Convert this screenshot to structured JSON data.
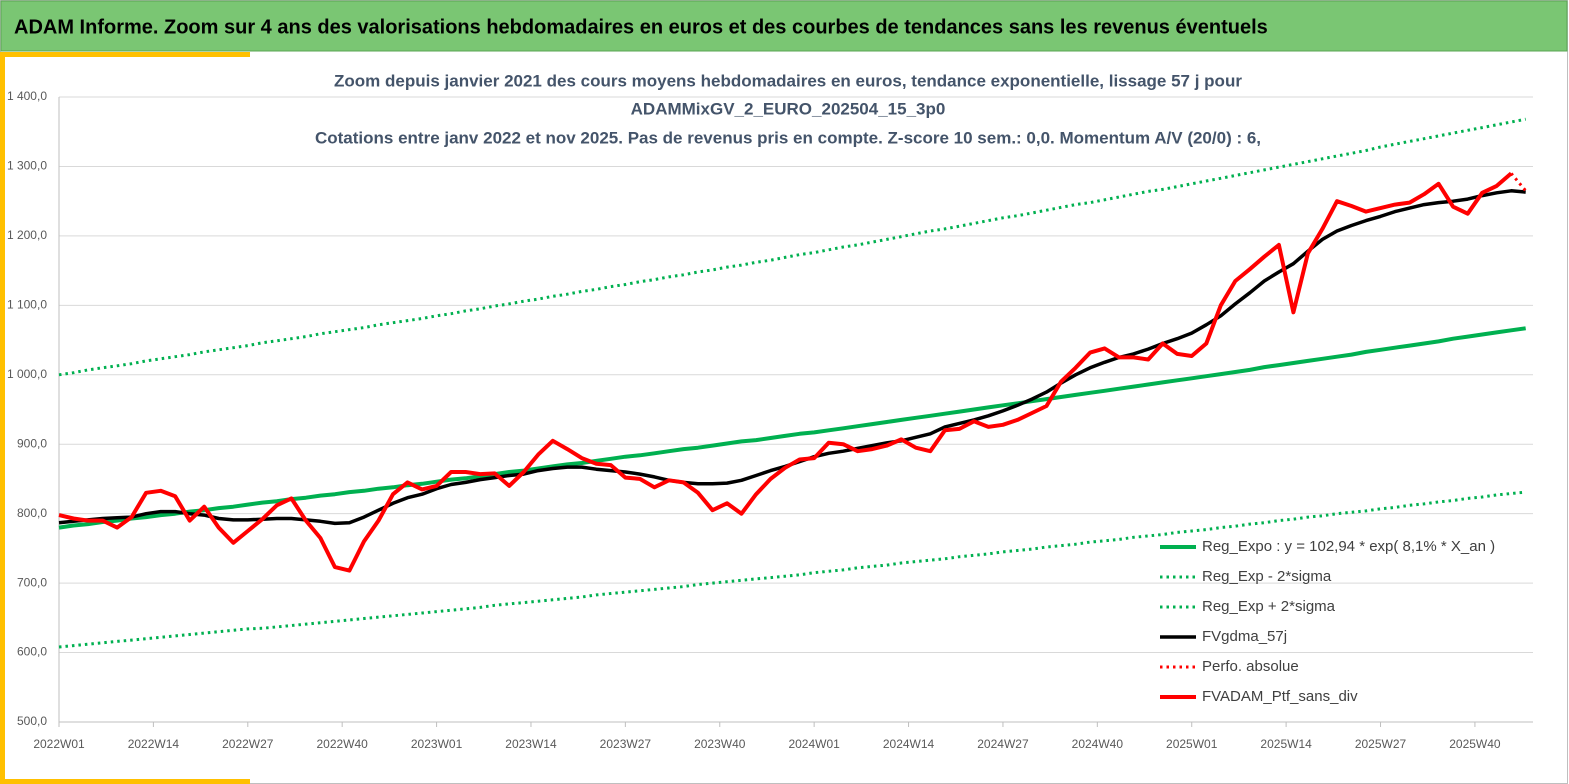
{
  "header": "ADAM Informe. Zoom sur 4 ans des valorisations hebdomadaires en euros et des courbes de tendances sans les revenus éventuels",
  "chart_data": {
    "type": "line",
    "title": [
      "Zoom depuis janvier 2021 des cours moyens hebdomadaires  en euros, tendance exponentielle, lissage 57 j pour",
      "ADAMMixGV_2_EURO_202504_15_3p0",
      "Cotations entre janv 2022 et nov 2025. Pas de revenus pris en compte. Z-score 10 sem.: 0,0. Momentum A/V (20/0) : 6,"
    ],
    "x": [
      0,
      2,
      4,
      6,
      8,
      10,
      12,
      14,
      16,
      18,
      20,
      22,
      24,
      26,
      28,
      30,
      32,
      34,
      36,
      38,
      40,
      42,
      44,
      46,
      48,
      50,
      52,
      54,
      56,
      58,
      60,
      62,
      64,
      66,
      68,
      70,
      72,
      74,
      76,
      78,
      80,
      82,
      84,
      86,
      88,
      90,
      92,
      94,
      96,
      98,
      100,
      102,
      104,
      106,
      108,
      110,
      112,
      114,
      116,
      118,
      120,
      122,
      124,
      126,
      128,
      130,
      132,
      134,
      136,
      138,
      140,
      142,
      144,
      146,
      148,
      150,
      152,
      154,
      156,
      158,
      160,
      162,
      164,
      166,
      168,
      170,
      172,
      174,
      176,
      178,
      180,
      182,
      184,
      186,
      188,
      190,
      192,
      194,
      196,
      198,
      200,
      202
    ],
    "xlim": [
      0,
      203
    ],
    "xticks": [
      {
        "value": 0,
        "label": "2022W01"
      },
      {
        "value": 13,
        "label": "2022W14"
      },
      {
        "value": 26,
        "label": "2022W27"
      },
      {
        "value": 39,
        "label": "2022W40"
      },
      {
        "value": 52,
        "label": "2023W01"
      },
      {
        "value": 65,
        "label": "2023W14"
      },
      {
        "value": 78,
        "label": "2023W27"
      },
      {
        "value": 91,
        "label": "2023W40"
      },
      {
        "value": 104,
        "label": "2024W01"
      },
      {
        "value": 117,
        "label": "2024W14"
      },
      {
        "value": 130,
        "label": "2024W27"
      },
      {
        "value": 143,
        "label": "2024W40"
      },
      {
        "value": 156,
        "label": "2025W01"
      },
      {
        "value": 169,
        "label": "2025W14"
      },
      {
        "value": 182,
        "label": "2025W27"
      },
      {
        "value": 195,
        "label": "2025W40"
      }
    ],
    "ylim": [
      500,
      1400
    ],
    "yticks": [
      {
        "value": 500,
        "label": "500,0"
      },
      {
        "value": 600,
        "label": "600,0"
      },
      {
        "value": 700,
        "label": "700,0"
      },
      {
        "value": 800,
        "label": "800,0"
      },
      {
        "value": 900,
        "label": "900,0"
      },
      {
        "value": 1000,
        "label": "1 000,0"
      },
      {
        "value": 1100,
        "label": "1 100,0"
      },
      {
        "value": 1200,
        "label": "1 200,0"
      },
      {
        "value": 1300,
        "label": "1 300,0"
      },
      {
        "value": 1400,
        "label": "1 400,0"
      }
    ],
    "grid": true,
    "legend": "right",
    "series": [
      {
        "name": "Reg_Expo : y = 102,94 * exp( 8,1% *  X_an )",
        "color": "#00b050",
        "style": "solid",
        "values": [
          780,
          783,
          785,
          788,
          790,
          793,
          795,
          798,
          800,
          803,
          805,
          808,
          810,
          813,
          816,
          818,
          821,
          823,
          826,
          828,
          831,
          833,
          836,
          838,
          841,
          843,
          846,
          849,
          851,
          854,
          857,
          860,
          862,
          865,
          868,
          871,
          873,
          876,
          879,
          882,
          884,
          887,
          890,
          893,
          895,
          898,
          901,
          904,
          906,
          909,
          912,
          915,
          917,
          920,
          923,
          926,
          929,
          932,
          935,
          938,
          941,
          944,
          947,
          950,
          953,
          956,
          959,
          962,
          965,
          968,
          971,
          974,
          977,
          980,
          983,
          986,
          989,
          992,
          995,
          998,
          1001,
          1004,
          1007,
          1011,
          1014,
          1017,
          1020,
          1023,
          1026,
          1029,
          1033,
          1036,
          1039,
          1042,
          1045,
          1048,
          1052,
          1055,
          1058,
          1061,
          1064,
          1067
        ]
      },
      {
        "name": "Reg_Exp - 2*sigma",
        "color": "#00b050",
        "style": "dotted",
        "values": [
          608,
          610,
          612,
          614,
          616,
          618,
          620,
          622,
          624,
          626,
          628,
          630,
          632,
          634,
          635,
          637,
          639,
          641,
          643,
          645,
          647,
          649,
          651,
          653,
          655,
          657,
          659,
          661,
          663,
          665,
          668,
          670,
          672,
          674,
          676,
          678,
          680,
          683,
          685,
          687,
          689,
          691,
          693,
          695,
          698,
          700,
          702,
          704,
          706,
          708,
          710,
          712,
          715,
          717,
          719,
          722,
          724,
          726,
          729,
          731,
          733,
          735,
          738,
          740,
          742,
          745,
          747,
          749,
          752,
          754,
          756,
          759,
          761,
          763,
          766,
          768,
          770,
          773,
          775,
          777,
          780,
          782,
          785,
          787,
          790,
          792,
          795,
          797,
          800,
          802,
          804,
          807,
          809,
          812,
          814,
          817,
          819,
          822,
          824,
          827,
          829,
          831
        ]
      },
      {
        "name": "Reg_Exp + 2*sigma",
        "color": "#00b050",
        "style": "dotted",
        "values": [
          1000,
          1003,
          1007,
          1010,
          1013,
          1016,
          1020,
          1023,
          1026,
          1029,
          1033,
          1036,
          1039,
          1042,
          1046,
          1049,
          1052,
          1055,
          1059,
          1062,
          1065,
          1068,
          1072,
          1075,
          1078,
          1081,
          1085,
          1088,
          1092,
          1095,
          1099,
          1102,
          1106,
          1109,
          1113,
          1116,
          1120,
          1123,
          1127,
          1130,
          1134,
          1137,
          1141,
          1144,
          1148,
          1151,
          1155,
          1158,
          1162,
          1165,
          1169,
          1173,
          1176,
          1180,
          1184,
          1187,
          1191,
          1195,
          1199,
          1203,
          1207,
          1210,
          1214,
          1218,
          1222,
          1226,
          1229,
          1233,
          1237,
          1241,
          1245,
          1248,
          1252,
          1256,
          1260,
          1264,
          1267,
          1271,
          1275,
          1279,
          1283,
          1287,
          1291,
          1295,
          1299,
          1303,
          1307,
          1311,
          1315,
          1319,
          1323,
          1328,
          1332,
          1336,
          1340,
          1344,
          1348,
          1352,
          1356,
          1360,
          1364,
          1368
        ]
      },
      {
        "name": "FVgdma_57j",
        "color": "#000000",
        "style": "solid",
        "values": [
          787,
          789,
          791,
          793,
          794,
          795,
          800,
          803,
          803,
          800,
          798,
          793,
          791,
          791,
          792,
          793,
          793,
          791,
          789,
          786,
          787,
          795,
          805,
          815,
          823,
          828,
          836,
          842,
          845,
          849,
          852,
          855,
          857,
          862,
          865,
          867,
          867,
          864,
          862,
          860,
          857,
          853,
          848,
          845,
          843,
          843,
          844,
          848,
          855,
          862,
          868,
          875,
          882,
          887,
          890,
          894,
          898,
          902,
          905,
          910,
          915,
          925,
          930,
          935,
          941,
          948,
          956,
          965,
          975,
          988,
          1000,
          1010,
          1018,
          1025,
          1030,
          1037,
          1045,
          1052,
          1060,
          1072,
          1085,
          1102,
          1118,
          1135,
          1148,
          1160,
          1178,
          1195,
          1207,
          1215,
          1222,
          1228,
          1235,
          1240,
          1245,
          1248,
          1250,
          1253,
          1258,
          1262,
          1265,
          1263
        ]
      },
      {
        "name": "Perfo. absolue",
        "color": "#ff0000",
        "style": "dotted",
        "values": [
          null,
          null,
          null,
          null,
          null,
          null,
          null,
          null,
          null,
          null,
          null,
          null,
          null,
          null,
          null,
          null,
          null,
          null,
          null,
          null,
          null,
          null,
          null,
          null,
          null,
          null,
          null,
          null,
          null,
          null,
          null,
          null,
          null,
          null,
          null,
          null,
          null,
          null,
          null,
          null,
          null,
          null,
          null,
          null,
          null,
          null,
          null,
          null,
          null,
          null,
          null,
          null,
          null,
          null,
          null,
          null,
          null,
          null,
          null,
          null,
          null,
          null,
          null,
          null,
          null,
          null,
          null,
          null,
          null,
          null,
          null,
          null,
          null,
          null,
          null,
          null,
          null,
          null,
          null,
          null,
          null,
          null,
          null,
          null,
          null,
          null,
          null,
          null,
          null,
          null,
          null,
          null,
          null,
          null,
          null,
          null,
          null,
          null,
          null,
          null,
          1290,
          1265
        ]
      },
      {
        "name": "FVADAM_Ptf_sans_div",
        "color": "#ff0000",
        "style": "solid",
        "values": [
          798,
          793,
          790,
          790,
          780,
          795,
          830,
          833,
          825,
          790,
          810,
          780,
          758,
          775,
          792,
          812,
          822,
          790,
          765,
          723,
          718,
          760,
          790,
          828,
          845,
          835,
          840,
          860,
          860,
          857,
          858,
          840,
          860,
          885,
          905,
          893,
          880,
          872,
          870,
          852,
          850,
          838,
          848,
          845,
          830,
          805,
          815,
          800,
          828,
          850,
          866,
          878,
          880,
          902,
          900,
          890,
          893,
          898,
          907,
          895,
          890,
          920,
          922,
          933,
          925,
          928,
          935,
          945,
          955,
          990,
          1010,
          1032,
          1038,
          1025,
          1025,
          1022,
          1045,
          1030,
          1027,
          1045,
          1100,
          1135,
          1152,
          1170,
          1187,
          1090,
          1175,
          1210,
          1250,
          1243,
          1235,
          1240,
          1245,
          1248,
          1260,
          1275,
          1242,
          1232,
          1262,
          1272,
          1290,
          null
        ]
      }
    ]
  }
}
